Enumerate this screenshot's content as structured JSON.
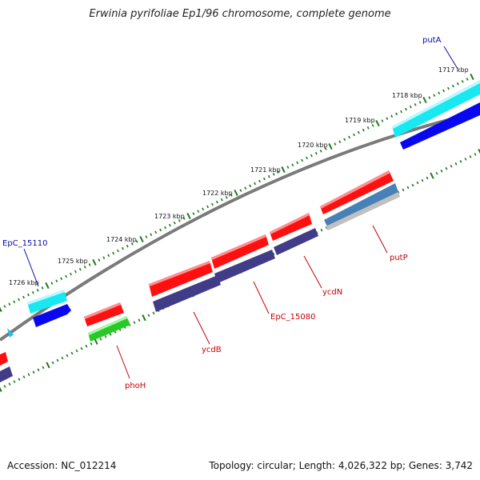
{
  "title": "Erwinia pyrifoliae Ep1/96 chromosome, complete genome",
  "accession": "Accession: NC_012214",
  "stats": "Topology: circular; Length: 4,026,322 bp; Genes: 3,742",
  "colors": {
    "backbone": "#7a7a7a",
    "ticks": "#1a7a1a",
    "label_blue": "#0a0aa8",
    "label_red": "#c80000",
    "red": "#ff1010",
    "navy": "#403c88",
    "cyan": "#18e8f0",
    "blue": "#0808f0",
    "green": "#28c828",
    "steel": "#4880b8",
    "grey": "#c0c0c0"
  },
  "kbp_labels": [
    "1717 kbp",
    "1718 kbp",
    "1719 kbp",
    "1720 kbp",
    "1721 kbp",
    "1722 kbp",
    "1723 kbp",
    "1724 kbp",
    "1725 kbp",
    "1726 kbp"
  ],
  "gene_labels": [
    {
      "text": "putA",
      "color": "blue"
    },
    {
      "text": "EpC_15110",
      "color": "blue"
    },
    {
      "text": "putP",
      "color": "red"
    },
    {
      "text": "ycdN",
      "color": "red"
    },
    {
      "text": "EpC_15080",
      "color": "red"
    },
    {
      "text": "ycdB",
      "color": "red"
    },
    {
      "text": "phoH",
      "color": "red"
    }
  ]
}
